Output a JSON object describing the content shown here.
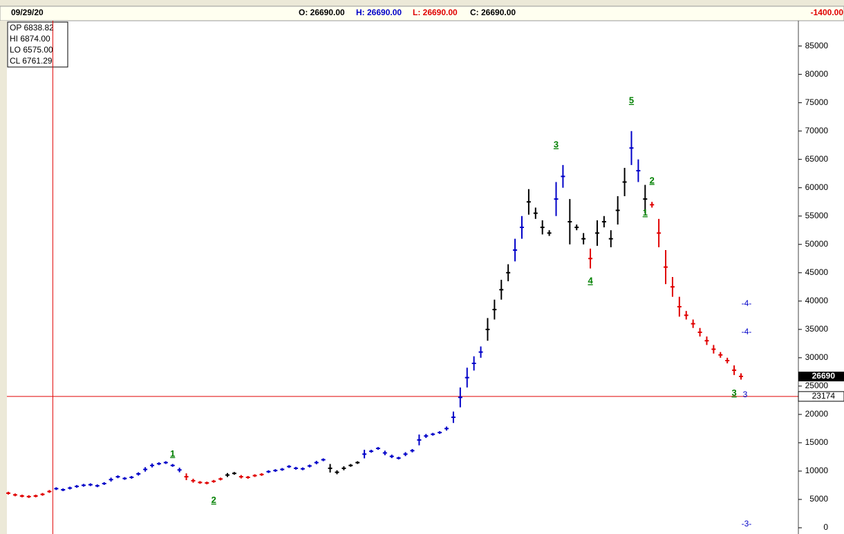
{
  "header": {
    "date": "09/29/20",
    "open": "O: 26690.00",
    "high": "H: 26690.00",
    "low": "L: 26690.00",
    "close": "C: 26690.00",
    "change": "-1400.00"
  },
  "info_box": [
    "OP 6838.82",
    "HI  6874.00",
    "LO 6575.00",
    "CL  6761.29"
  ],
  "chart_data": {
    "type": "price-bars",
    "values": [
      6100,
      5800,
      5600,
      5500,
      5600,
      5900,
      6400,
      6900,
      6700,
      7000,
      7300,
      7500,
      7600,
      7400,
      7800,
      8500,
      9000,
      8700,
      8900,
      9500,
      10300,
      11000,
      11300,
      11500,
      11000,
      10200,
      9000,
      8300,
      8000,
      7900,
      8200,
      8600,
      9300,
      9600,
      9000,
      8900,
      9200,
      9400,
      9900,
      10100,
      10300,
      10800,
      10500,
      10400,
      10900,
      11500,
      12000,
      10500,
      9800,
      10500,
      11000,
      11500,
      13000,
      13500,
      14000,
      13200,
      12600,
      12300,
      13000,
      13600,
      15500,
      16200,
      16500,
      16800,
      17500,
      19500,
      23000,
      26500,
      29000,
      31000,
      35000,
      38500,
      42000,
      45000,
      49000,
      53000,
      57500,
      55500,
      53000,
      52000,
      58000,
      62000,
      54000,
      53000,
      51000,
      47500,
      52000,
      54000,
      51000,
      56000,
      61000,
      67000,
      63000,
      58000,
      57000,
      52000,
      46000,
      42500,
      39000,
      37500,
      36000,
      34500,
      33000,
      31500,
      30500,
      29500,
      27800,
      26700
    ],
    "colors": [
      "#e00000",
      "#e00000",
      "#e00000",
      "#e00000",
      "#e00000",
      "#e00000",
      "#e00000",
      "#0000c8",
      "#0000c8",
      "#0000c8",
      "#0000c8",
      "#0000c8",
      "#0000c8",
      "#0000c8",
      "#0000c8",
      "#0000c8",
      "#0000c8",
      "#0000c8",
      "#0000c8",
      "#0000c8",
      "#0000c8",
      "#0000c8",
      "#0000c8",
      "#0000c8",
      "#0000c8",
      "#0000c8",
      "#e00000",
      "#e00000",
      "#e00000",
      "#e00000",
      "#e00000",
      "#e00000",
      "#000000",
      "#000000",
      "#e00000",
      "#e00000",
      "#e00000",
      "#e00000",
      "#0000c8",
      "#0000c8",
      "#0000c8",
      "#0000c8",
      "#0000c8",
      "#0000c8",
      "#0000c8",
      "#0000c8",
      "#0000c8",
      "#000000",
      "#000000",
      "#000000",
      "#000000",
      "#000000",
      "#0000c8",
      "#0000c8",
      "#0000c8",
      "#0000c8",
      "#0000c8",
      "#0000c8",
      "#0000c8",
      "#0000c8",
      "#0000c8",
      "#0000c8",
      "#0000c8",
      "#0000c8",
      "#0000c8",
      "#0000c8",
      "#0000c8",
      "#0000c8",
      "#0000c8",
      "#0000c8",
      "#000000",
      "#000000",
      "#000000",
      "#000000",
      "#0000c8",
      "#0000c8",
      "#000000",
      "#000000",
      "#000000",
      "#000000",
      "#0000c8",
      "#0000c8",
      "#000000",
      "#000000",
      "#000000",
      "#e00000",
      "#000000",
      "#000000",
      "#000000",
      "#000000",
      "#000000",
      "#0000c8",
      "#0000c8",
      "#000000",
      "#e00000",
      "#e00000",
      "#e00000",
      "#e00000",
      "#e00000",
      "#e00000",
      "#e00000",
      "#e00000",
      "#e00000",
      "#e00000",
      "#e00000",
      "#e00000",
      "#e00000",
      "#e00000"
    ],
    "ylim": [
      -1100,
      89100
    ],
    "yticks": [
      0,
      5000,
      10000,
      15000,
      20000,
      25000,
      30000,
      35000,
      40000,
      45000,
      50000,
      55000,
      60000,
      65000,
      70000,
      75000,
      80000,
      85000
    ],
    "last_price": 26690,
    "crosshair": {
      "x": 6.5,
      "y": 23174
    },
    "annotations": [
      {
        "text": "1",
        "x": 24,
        "y": 13000,
        "color": "#008000"
      },
      {
        "text": "2",
        "x": 30,
        "y": 4800,
        "color": "#008000"
      },
      {
        "text": "3",
        "x": 80,
        "y": 67500,
        "color": "#008000"
      },
      {
        "text": "4",
        "x": 85,
        "y": 43500,
        "color": "#008000"
      },
      {
        "text": "5",
        "x": 91,
        "y": 75300,
        "color": "#008000"
      },
      {
        "text": "1",
        "x": 93,
        "y": 55500,
        "color": "#008000"
      },
      {
        "text": "2",
        "x": 94,
        "y": 61200,
        "color": "#008000"
      },
      {
        "text": "3",
        "x": 106,
        "y": 23700,
        "color": "#008000"
      },
      {
        "text": "-4-",
        "x": 107.8,
        "y": 39500,
        "color": "#0000c8"
      },
      {
        "text": "-4-",
        "x": 107.8,
        "y": 34500,
        "color": "#0000c8"
      },
      {
        "text": "3",
        "x": 107.6,
        "y": 23400,
        "color": "#0000c8"
      },
      {
        "text": "-3-",
        "x": 107.8,
        "y": 600,
        "color": "#0000c8"
      }
    ]
  }
}
